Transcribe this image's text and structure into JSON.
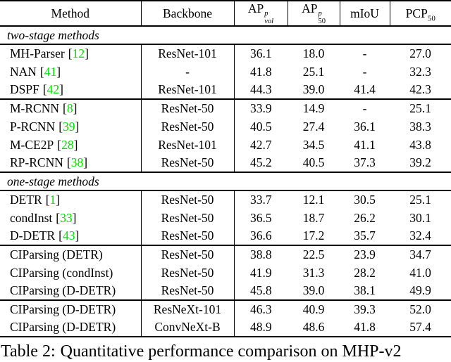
{
  "colors": {
    "citation": "#00e000",
    "text": "#000000",
    "background": "#ffffff"
  },
  "symbols": {
    "open": "[",
    "close": "]"
  },
  "header": {
    "method": "Method",
    "backbone": "Backbone",
    "ap_vol": {
      "base": "AP",
      "sup": "p",
      "sub": "vol"
    },
    "ap_50": {
      "base": "AP",
      "sup": "p",
      "sub": "50"
    },
    "miou": "mIoU",
    "pcp": {
      "base": "PCP",
      "sub": "50"
    }
  },
  "sections": {
    "two_stage": "two-stage methods",
    "one_stage": "one-stage methods"
  },
  "rows": [
    {
      "method": "MH-Parser",
      "cite": "12",
      "backbone": "ResNet-101",
      "ap_vol": "36.1",
      "ap_50": "18.0",
      "miou": "-",
      "pcp": "27.0"
    },
    {
      "method": "NAN",
      "cite": "41",
      "backbone": "-",
      "ap_vol": "41.8",
      "ap_50": "25.1",
      "miou": "-",
      "pcp": "32.3"
    },
    {
      "method": "DSPF",
      "cite": "42",
      "backbone": "ResNet-101",
      "ap_vol": "44.3",
      "ap_50": "39.0",
      "miou": "41.4",
      "pcp": "42.3"
    },
    {
      "method": "M-RCNN",
      "cite": "8",
      "backbone": "ResNet-50",
      "ap_vol": "33.9",
      "ap_50": "14.9",
      "miou": "-",
      "pcp": "25.1"
    },
    {
      "method": "P-RCNN",
      "cite": "39",
      "backbone": "ResNet-50",
      "ap_vol": "40.5",
      "ap_50": "27.4",
      "miou": "36.1",
      "pcp": "38.3"
    },
    {
      "method": "M-CE2P",
      "cite": "28",
      "backbone": "ResNet-101",
      "ap_vol": "42.7",
      "ap_50": "34.5",
      "miou": "41.1",
      "pcp": "43.8"
    },
    {
      "method": "RP-RCNN",
      "cite": "38",
      "backbone": "ResNet-50",
      "ap_vol": "45.2",
      "ap_50": "40.5",
      "miou": "37.3",
      "pcp": "39.2"
    },
    {
      "method": "DETR",
      "cite": "1",
      "backbone": "ResNet-50",
      "ap_vol": "33.7",
      "ap_50": "12.1",
      "miou": "30.5",
      "pcp": "25.1"
    },
    {
      "method": "condInst",
      "cite": "33",
      "backbone": "ResNet-50",
      "ap_vol": "36.5",
      "ap_50": "18.7",
      "miou": "26.2",
      "pcp": "30.1"
    },
    {
      "method": "D-DETR",
      "cite": "43",
      "backbone": "ResNet-50",
      "ap_vol": "36.6",
      "ap_50": "17.2",
      "miou": "35.7",
      "pcp": "32.4"
    },
    {
      "method": "CIParsing (DETR)",
      "backbone": "ResNet-50",
      "ap_vol": "38.8",
      "ap_50": "22.5",
      "miou": "23.9",
      "pcp": "34.7"
    },
    {
      "method": "CIParsing (condInst)",
      "backbone": "ResNet-50",
      "ap_vol": "41.9",
      "ap_50": "31.3",
      "miou": "28.2",
      "pcp": "41.0"
    },
    {
      "method": "CIParsing (D-DETR)",
      "backbone": "ResNet-50",
      "ap_vol": "45.8",
      "ap_50": "39.0",
      "miou": "38.1",
      "pcp": "49.9"
    },
    {
      "method": "CIParsing (D-DETR)",
      "backbone": "ResNeXt-101",
      "ap_vol": "46.3",
      "ap_50": "40.9",
      "miou": "39.3",
      "pcp": "52.0"
    },
    {
      "method": "CIParsing (D-DETR)",
      "backbone": "ConvNeXt-B",
      "ap_vol": "48.9",
      "ap_50": "48.6",
      "miou": "41.8",
      "pcp": "57.4"
    }
  ],
  "caption": {
    "label": "Table 2:",
    "text": "Quantitative performance comparison on MHP-v2"
  }
}
